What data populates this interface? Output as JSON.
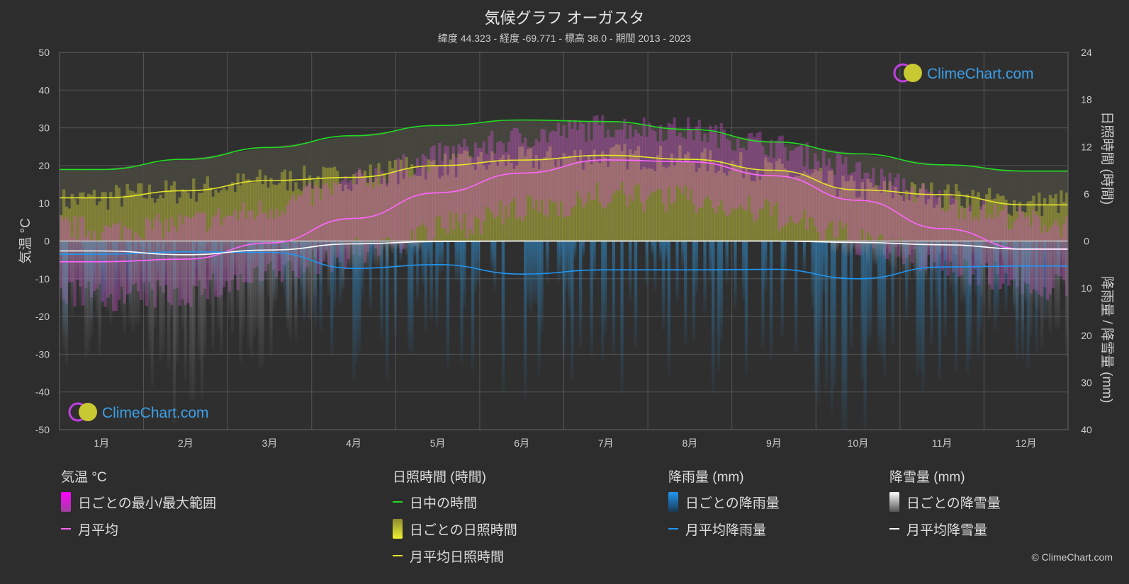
{
  "header": {
    "title": "気候グラフ オーガスタ",
    "subtitle": "緯度 44.323 - 経度 -69.771 - 標高 38.0 - 期間 2013 - 2023"
  },
  "brand": {
    "logo_text": "ClimeChart.com",
    "copyright": "© ClimeChart.com"
  },
  "colors": {
    "background": "#2d2d2d",
    "grid": "#555555",
    "daylight": "#22dd22",
    "sunshine_monthly": "#e6e62a",
    "sunshine_daily": "#aaaa33",
    "temp_range": "#d34fd3",
    "temp_monthly": "#ff66ff",
    "rain": "#2f8ecf",
    "rain_monthly": "#2196f3",
    "snow": "#cccccc",
    "snow_monthly": "#ffffff",
    "brand_blue": "#3ca0e8"
  },
  "chart_data": {
    "type": "line",
    "x_months": [
      "1月",
      "2月",
      "3月",
      "4月",
      "5月",
      "6月",
      "7月",
      "8月",
      "9月",
      "10月",
      "11月",
      "12月"
    ],
    "left_axis": {
      "label": "気温 °C",
      "ylim": [
        -50,
        50
      ],
      "ticks": [
        50,
        40,
        30,
        20,
        10,
        0,
        -10,
        -20,
        -30,
        -40,
        -50
      ]
    },
    "right_axis_top": {
      "label": "日照時間 (時間)",
      "ylim": [
        0,
        24
      ],
      "ticks": [
        24,
        18,
        12,
        6,
        0
      ]
    },
    "right_axis_bottom": {
      "label": "降雨量 / 降雪量 (mm)",
      "ylim": [
        0,
        40
      ],
      "ticks": [
        0,
        10,
        20,
        30,
        40
      ]
    },
    "grid": true,
    "series": [
      {
        "name": "日中の時間",
        "axis": "sunshine_hours",
        "values": [
          9.1,
          10.4,
          11.9,
          13.4,
          14.7,
          15.4,
          15.2,
          14.2,
          12.6,
          11.1,
          9.7,
          8.9
        ]
      },
      {
        "name": "月平均日照時間",
        "axis": "sunshine_hours",
        "values": [
          5.5,
          6.4,
          7.7,
          8.1,
          9.6,
          10.3,
          10.9,
          10.4,
          9.0,
          6.5,
          5.9,
          4.6
        ]
      },
      {
        "name": "月平均",
        "axis": "temperature_c",
        "values": [
          -5.5,
          -4.8,
          -0.5,
          6.0,
          12.8,
          18.0,
          21.5,
          21.0,
          17.3,
          10.8,
          3.3,
          -2.2
        ]
      },
      {
        "name": "月平均降雨量",
        "axis": "precipitation_mm",
        "values": [
          2.8,
          2.3,
          2.4,
          5.8,
          5.0,
          7.0,
          6.1,
          6.1,
          6.0,
          8.0,
          5.5,
          5.3
        ]
      },
      {
        "name": "月平均降雪量",
        "axis": "precipitation_mm",
        "values": [
          2.1,
          2.9,
          1.9,
          0.6,
          0.1,
          0.0,
          0.0,
          0.0,
          0.0,
          0.3,
          0.8,
          1.7
        ]
      }
    ],
    "daily_temp_range": {
      "name": "日ごとの最小/最大範囲",
      "monthly_min": [
        -11,
        -10,
        -5,
        1,
        7,
        12,
        16,
        15,
        11,
        4,
        -2,
        -7
      ],
      "monthly_max": [
        -1,
        1,
        5,
        12,
        19,
        24,
        27,
        26,
        22,
        15,
        7,
        2
      ]
    }
  },
  "legend": {
    "temperature": {
      "title": "気温 °C",
      "items": [
        "日ごとの最小/最大範囲",
        "月平均"
      ]
    },
    "sunshine": {
      "title": "日照時間 (時間)",
      "items": [
        "日中の時間",
        "日ごとの日照時間",
        "月平均日照時間"
      ]
    },
    "rain": {
      "title": "降雨量 (mm)",
      "items": [
        "日ごとの降雨量",
        "月平均降雨量"
      ]
    },
    "snow": {
      "title": "降雪量 (mm)",
      "items": [
        "日ごとの降雪量",
        "月平均降雪量"
      ]
    }
  }
}
